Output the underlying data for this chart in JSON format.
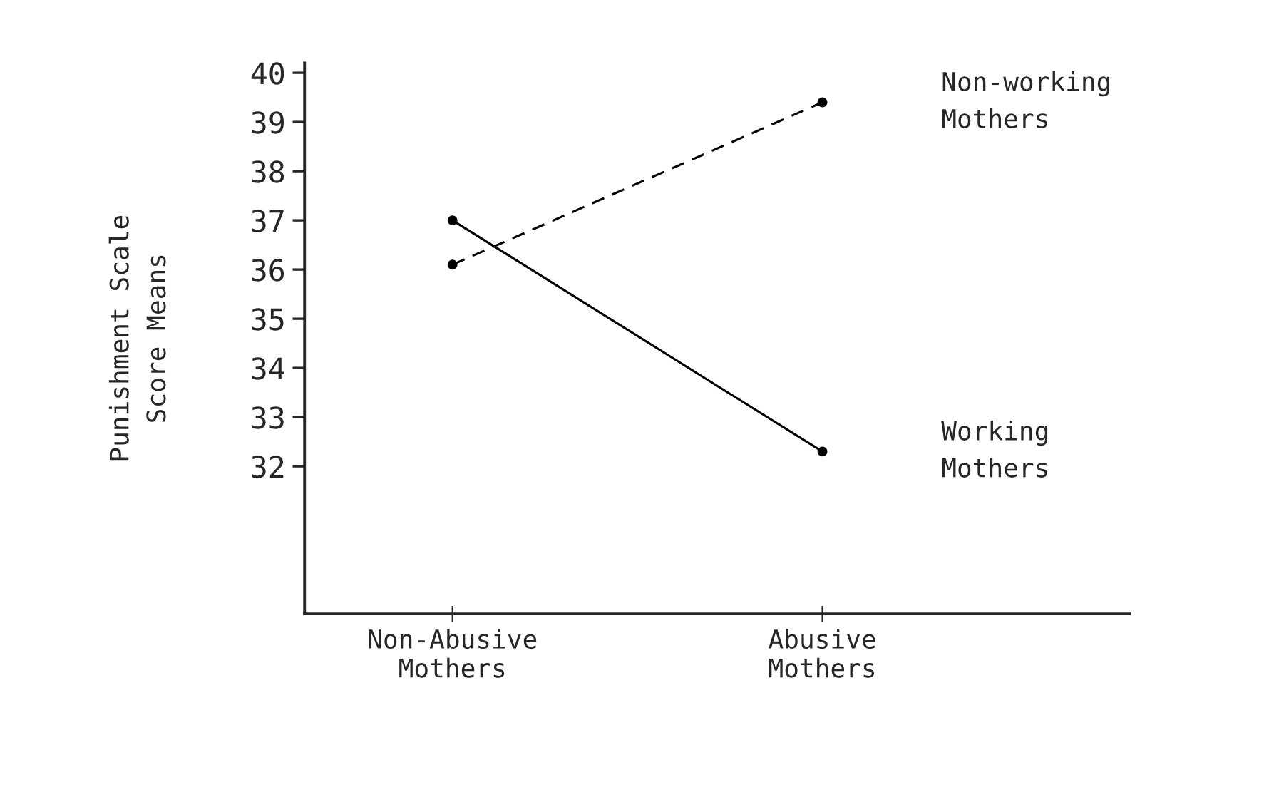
{
  "chart_data": {
    "type": "line",
    "ylabel": "Punishment Scale\nScore Means",
    "categories": [
      "Non-Abusive\nMothers",
      "Abusive\nMothers"
    ],
    "series": [
      {
        "name": "Non-working\nMothers",
        "color": "#000000",
        "values": [
          36.1,
          39.4
        ],
        "line_style": "dashed"
      },
      {
        "name": "Working\nMothers",
        "color": "#000000",
        "values": [
          37.0,
          32.3
        ],
        "line_style": "solid"
      }
    ],
    "ylim": [
      29,
      40.2
    ],
    "yticks": [
      32,
      33,
      34,
      35,
      36,
      37,
      38,
      39,
      40
    ],
    "marker": "circle",
    "grid": false,
    "legend": false
  }
}
